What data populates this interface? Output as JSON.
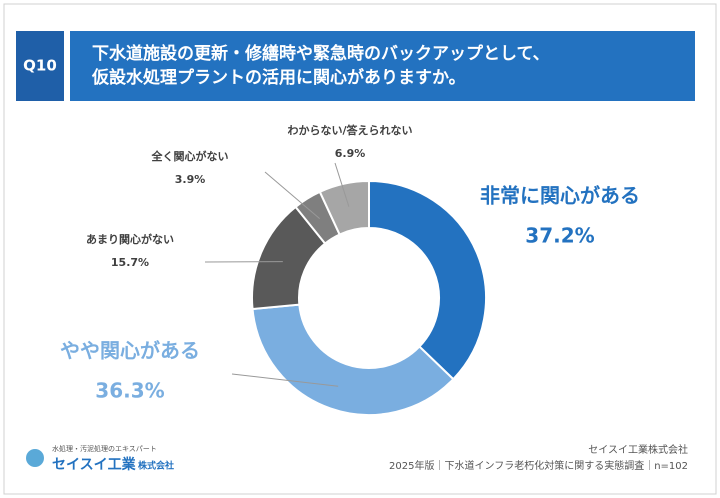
{
  "question": "Q10",
  "chart_data": {
    "type": "donut",
    "title": [
      "下水道施設の更新・修繕時や緊急時のバックアップとして、",
      "仮設水処理プラントの活用に関心がありますか。"
    ],
    "categories": [
      "非常に関心がある",
      "やや関心がある",
      "あまり関心がない",
      "全く関心がない",
      "わからない/答えられない"
    ],
    "values": [
      37.2,
      36.3,
      15.7,
      3.9,
      6.9
    ],
    "value_labels": [
      "37.2%",
      "36.3%",
      "15.7%",
      "3.9%",
      "6.9%"
    ],
    "colors": [
      "#2372c0",
      "#7aaee0",
      "#595959",
      "#7f7f7f",
      "#a6a6a6"
    ]
  },
  "logo": {
    "tagline": "水処理・汚泥処理のエキスパート",
    "name": "セイスイ工業",
    "suffix": "株式会社"
  },
  "footer": {
    "company": "セイスイ工業株式会社",
    "survey": "2025年版｜下水道インフラ老朽化対策に関する実態調査｜n=102"
  }
}
